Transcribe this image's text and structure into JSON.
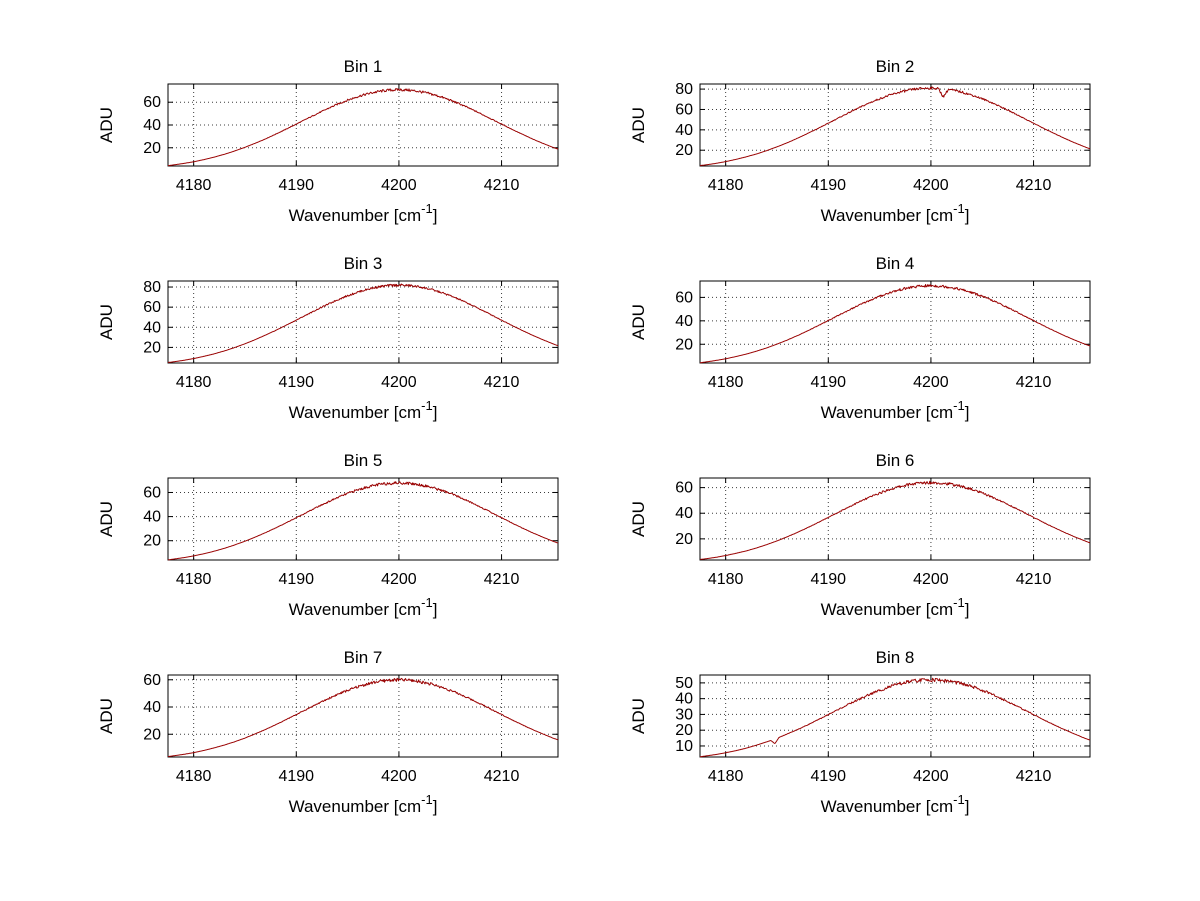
{
  "figure": {
    "background": "#ffffff",
    "line_color": "#990000",
    "grid_color": "#3c3c3c",
    "axis_color": "#000000",
    "text_color": "#000000"
  },
  "chart_data": {
    "type": "line",
    "title": "",
    "xlabel_base": "Wavenumber [cm",
    "xlabel_exponent": "-1",
    "xlabel_suffix": "]",
    "ylabel": "ADU",
    "xlim": [
      4177.5,
      4215.5
    ],
    "xticks": [
      4180,
      4190,
      4200,
      4210
    ],
    "grid": "dotted",
    "legend": "none",
    "noise": 1.2,
    "x": [
      4177.5,
      4178,
      4179,
      4180,
      4181,
      4182,
      4183,
      4184,
      4185,
      4186,
      4187,
      4188,
      4189,
      4190,
      4191,
      4192,
      4193,
      4194,
      4195,
      4196,
      4197,
      4198,
      4199,
      4200,
      4201,
      4202,
      4203,
      4204,
      4205,
      4206,
      4207,
      4208,
      4209,
      4210,
      4211,
      4212,
      4213,
      4214,
      4215,
      4215.5
    ],
    "series": [
      {
        "name": "Bin 1",
        "yticks": [
          20,
          40,
          60
        ],
        "ylim": [
          4,
          76
        ],
        "values": [
          4.3,
          4.9,
          6.2,
          7.7,
          9.6,
          11.8,
          14.3,
          17.2,
          20.4,
          24.0,
          27.8,
          32.0,
          36.3,
          40.8,
          45.3,
          49.8,
          54.1,
          58.2,
          61.8,
          65.0,
          67.5,
          69.4,
          70.6,
          71.0,
          70.6,
          69.4,
          67.5,
          65.0,
          61.8,
          58.2,
          54.1,
          49.8,
          45.3,
          40.8,
          36.3,
          32.0,
          27.8,
          24.0,
          20.4,
          18.8
        ]
      },
      {
        "name": "Bin 2",
        "yticks": [
          20,
          40,
          60,
          80
        ],
        "ylim": [
          4.5,
          85
        ],
        "dip": {
          "x": 4201.2,
          "depth": 8,
          "width": 0.5
        },
        "values": [
          4.9,
          5.5,
          7.0,
          8.8,
          11.0,
          13.5,
          16.3,
          19.6,
          23.3,
          27.3,
          31.8,
          36.5,
          41.4,
          46.5,
          51.7,
          56.8,
          61.7,
          66.4,
          70.5,
          74.1,
          77.1,
          79.2,
          80.6,
          81.0,
          80.6,
          79.2,
          77.1,
          74.1,
          70.5,
          66.4,
          61.7,
          56.8,
          51.7,
          46.5,
          41.4,
          36.5,
          31.8,
          27.3,
          23.3,
          21.4
        ]
      },
      {
        "name": "Bin 3",
        "yticks": [
          20,
          40,
          60,
          80
        ],
        "ylim": [
          4.5,
          86
        ],
        "values": [
          5.0,
          5.6,
          7.1,
          8.9,
          11.1,
          13.6,
          16.5,
          19.9,
          23.6,
          27.7,
          32.2,
          36.9,
          42.0,
          47.1,
          52.4,
          57.5,
          62.5,
          67.2,
          71.4,
          75.0,
          78.0,
          80.2,
          81.5,
          82.0,
          81.5,
          80.2,
          78.0,
          75.0,
          71.4,
          67.2,
          62.5,
          57.5,
          52.4,
          47.1,
          42.0,
          36.9,
          32.2,
          27.7,
          23.6,
          21.7
        ]
      },
      {
        "name": "Bin 4",
        "yticks": [
          20,
          40,
          60
        ],
        "ylim": [
          4,
          74
        ],
        "values": [
          4.2,
          4.8,
          6.1,
          7.6,
          9.5,
          11.6,
          14.1,
          16.9,
          20.1,
          23.6,
          27.4,
          31.5,
          35.8,
          40.2,
          44.7,
          49.1,
          53.4,
          57.3,
          60.9,
          64.1,
          66.6,
          68.5,
          69.6,
          70.0,
          69.6,
          68.5,
          66.6,
          64.1,
          60.9,
          57.3,
          53.4,
          49.1,
          44.7,
          40.2,
          35.8,
          31.5,
          27.4,
          23.6,
          20.1,
          18.5
        ]
      },
      {
        "name": "Bin 5",
        "yticks": [
          20,
          40,
          60
        ],
        "ylim": [
          4,
          72
        ],
        "values": [
          4.1,
          4.7,
          5.9,
          7.4,
          9.2,
          11.3,
          13.7,
          16.5,
          19.6,
          23.0,
          26.7,
          30.6,
          34.8,
          39.1,
          43.4,
          47.7,
          51.8,
          55.7,
          59.2,
          62.2,
          64.7,
          66.5,
          67.6,
          68.0,
          67.6,
          66.5,
          64.7,
          62.2,
          59.2,
          55.7,
          51.8,
          47.7,
          43.4,
          39.1,
          34.8,
          30.6,
          26.7,
          23.0,
          19.6,
          18.0
        ]
      },
      {
        "name": "Bin 6",
        "yticks": [
          20,
          40,
          60
        ],
        "ylim": [
          3.5,
          67.5
        ],
        "values": [
          3.9,
          4.4,
          5.5,
          7.0,
          8.7,
          10.6,
          12.9,
          15.5,
          18.4,
          21.6,
          25.1,
          28.8,
          32.7,
          36.8,
          40.9,
          44.9,
          48.8,
          52.4,
          55.7,
          58.6,
          60.9,
          62.6,
          63.6,
          64.0,
          63.6,
          62.6,
          60.9,
          58.6,
          55.7,
          52.4,
          48.8,
          44.9,
          40.9,
          36.8,
          32.7,
          28.8,
          25.1,
          21.6,
          18.4,
          16.9
        ]
      },
      {
        "name": "Bin 7",
        "yticks": [
          20,
          40,
          60
        ],
        "ylim": [
          3.3,
          63.5
        ],
        "values": [
          3.6,
          4.1,
          5.2,
          6.5,
          8.1,
          10.0,
          12.1,
          14.5,
          17.2,
          20.3,
          23.5,
          27.0,
          30.7,
          34.5,
          38.3,
          42.1,
          45.7,
          49.2,
          52.2,
          54.9,
          57.1,
          58.7,
          59.7,
          60.0,
          59.7,
          58.7,
          57.1,
          54.9,
          52.2,
          49.2,
          45.7,
          42.1,
          38.3,
          34.5,
          30.7,
          27.0,
          23.5,
          20.3,
          17.2,
          15.9
        ]
      },
      {
        "name": "Bin 8",
        "yticks": [
          10,
          20,
          30,
          40,
          50
        ],
        "ylim": [
          3,
          55
        ],
        "dip": {
          "x": 4184.8,
          "depth": 3,
          "width": 0.4
        },
        "values": [
          3.1,
          3.6,
          4.5,
          5.7,
          7.0,
          8.6,
          10.5,
          12.6,
          14.9,
          17.6,
          20.4,
          23.4,
          26.6,
          29.9,
          33.2,
          36.5,
          39.6,
          42.6,
          45.3,
          47.6,
          49.5,
          50.9,
          51.7,
          52.0,
          51.7,
          50.9,
          49.5,
          47.6,
          45.3,
          42.6,
          39.6,
          36.5,
          33.2,
          29.9,
          26.6,
          23.4,
          20.4,
          17.6,
          14.9,
          13.7
        ]
      }
    ]
  }
}
